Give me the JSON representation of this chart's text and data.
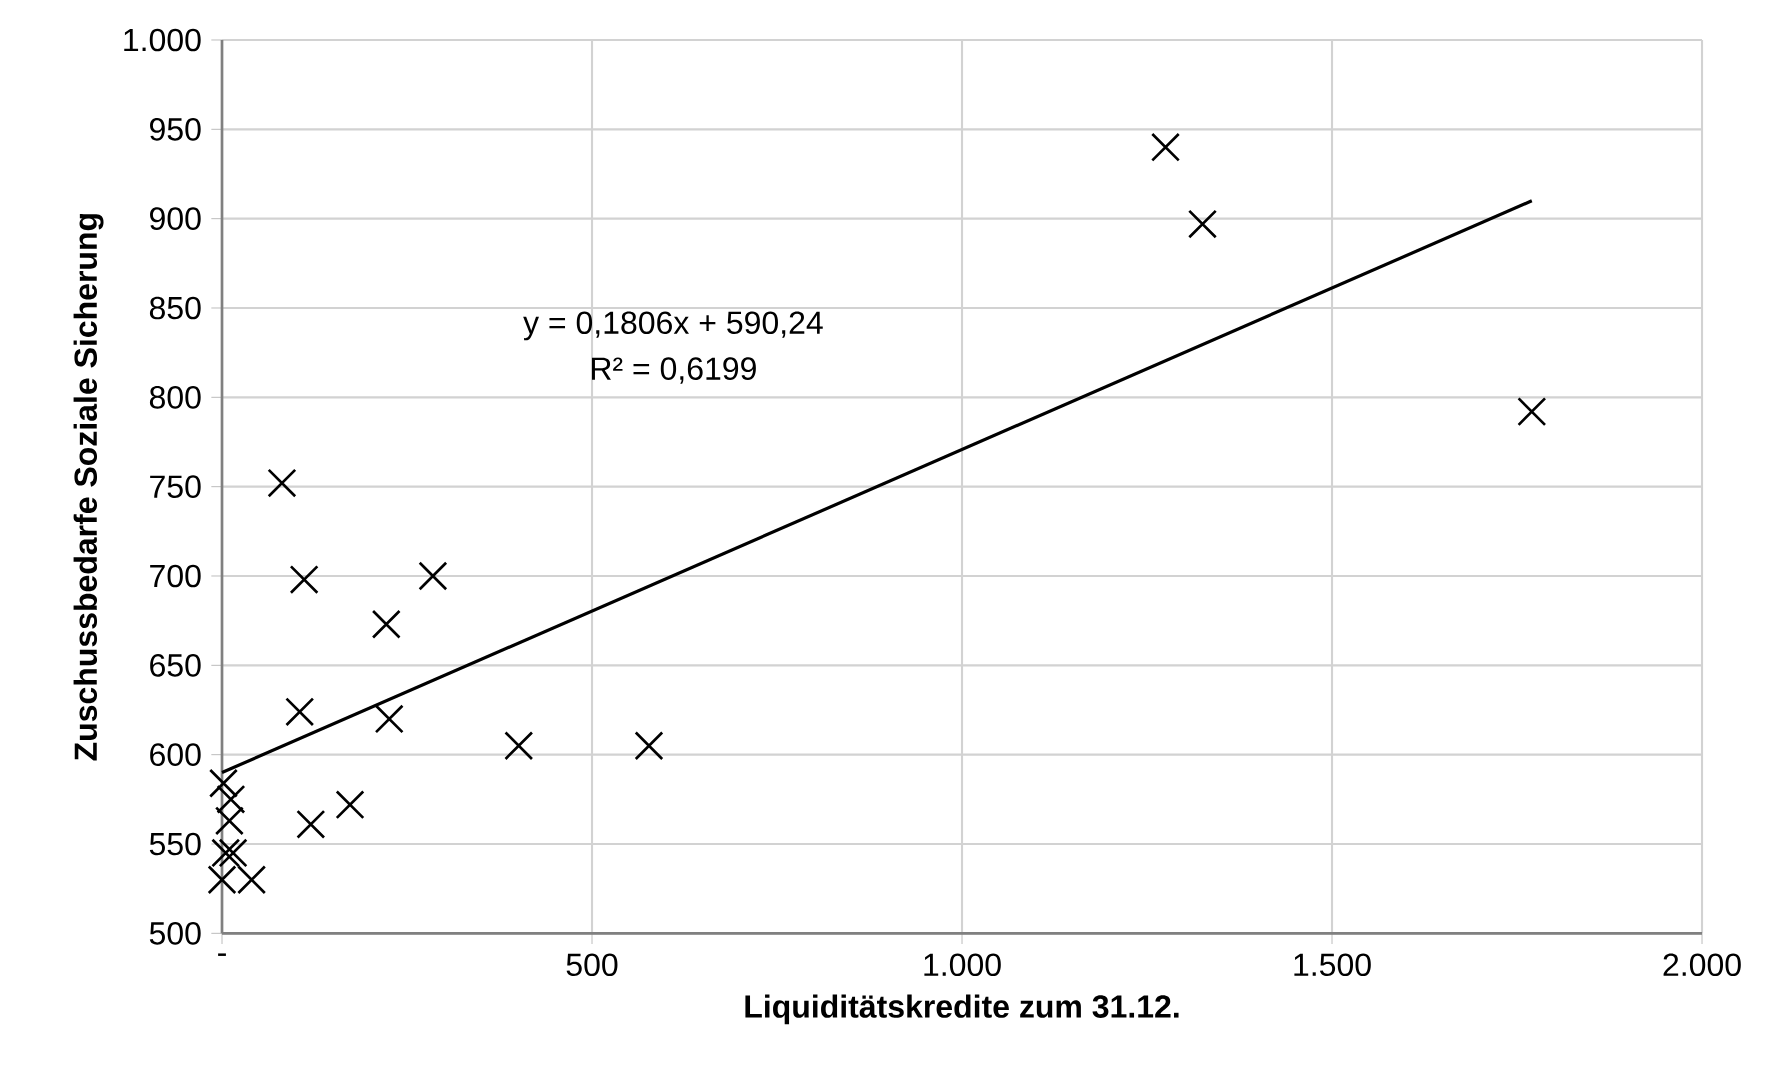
{
  "chart_data": {
    "type": "scatter",
    "xlabel": "Liquiditätskredite zum 31.12.",
    "ylabel": "Zuschussbedarfe Soziale Sicherung",
    "xlim": [
      0,
      2000
    ],
    "ylim": [
      500,
      1000
    ],
    "xticks": [
      {
        "value": 0,
        "label": "-"
      },
      500,
      {
        "value": 1000,
        "label": "1.000"
      },
      {
        "value": 1500,
        "label": "1.500"
      },
      {
        "value": 2000,
        "label": "2.000"
      }
    ],
    "yticks": [
      500,
      550,
      600,
      650,
      700,
      750,
      800,
      850,
      900,
      950,
      {
        "value": 1000,
        "label": "1.000"
      }
    ],
    "grid": true,
    "marker": "cross",
    "series": [
      {
        "color": "#000000",
        "x": [
          81,
          111,
          285,
          222,
          105,
          226,
          401,
          577,
          173,
          120,
          2,
          12,
          10,
          5,
          15,
          0,
          40,
          1275,
          1325,
          1770
        ],
        "values": [
          752,
          698,
          700,
          673,
          624,
          620,
          605,
          605,
          572,
          561,
          584,
          575,
          563,
          545,
          545,
          530,
          530,
          940,
          897,
          792
        ]
      },
      {
        "type": "line",
        "marker": "none",
        "color": "#000000",
        "x": [
          0,
          1770
        ],
        "values": [
          590,
          910
        ]
      }
    ],
    "annotations": [
      "y = 0,1806x + 590,24",
      "R² = 0,6199"
    ]
  }
}
